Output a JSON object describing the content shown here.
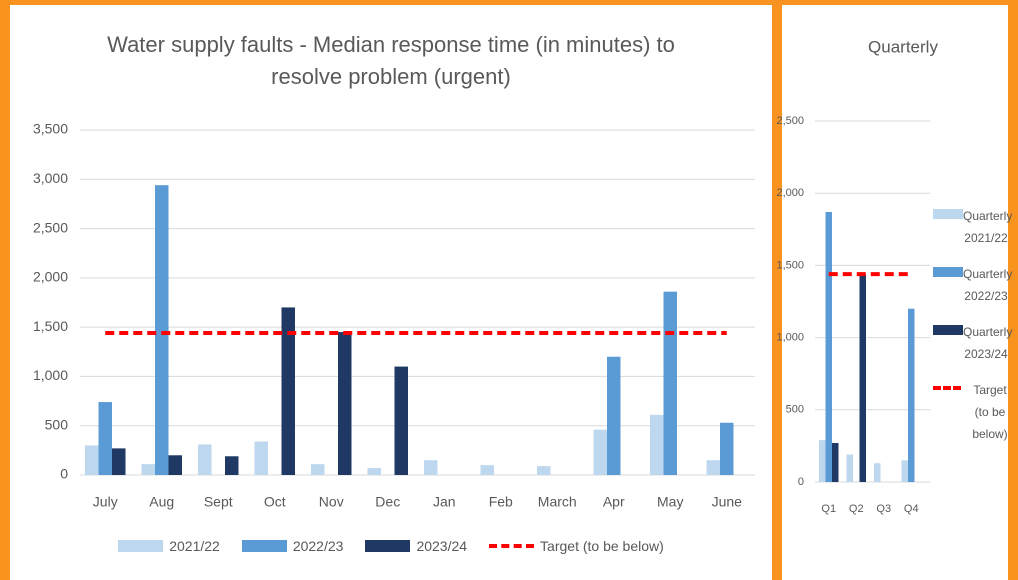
{
  "chart_data": [
    {
      "type": "bar",
      "title": [
        "Water supply faults - Median response time (in minutes) to",
        "resolve problem (urgent)"
      ],
      "categories": [
        "July",
        "Aug",
        "Sept",
        "Oct",
        "Nov",
        "Dec",
        "Jan",
        "Feb",
        "March",
        "Apr",
        "May",
        "June"
      ],
      "series": [
        {
          "name": "2021/22",
          "color": "#bdd7ee",
          "values": [
            300,
            110,
            310,
            340,
            110,
            70,
            150,
            100,
            90,
            460,
            610,
            150
          ]
        },
        {
          "name": "2022/23",
          "color": "#5b9bd5",
          "values": [
            740,
            2940,
            null,
            null,
            null,
            null,
            null,
            null,
            null,
            1200,
            1860,
            530
          ]
        },
        {
          "name": "2023/24",
          "color": "#203864",
          "values": [
            270,
            200,
            190,
            1700,
            1450,
            1100,
            null,
            null,
            null,
            null,
            null,
            null
          ]
        },
        {
          "name": "Target (to be below)",
          "color": "#ff0000",
          "type": "line",
          "dash": true,
          "values": [
            1440,
            1440,
            1440,
            1440,
            1440,
            1440,
            1440,
            1440,
            1440,
            1440,
            1440,
            1440
          ]
        }
      ],
      "ylim": [
        0,
        3500
      ],
      "yticks": [
        0,
        500,
        {
          "value": 1000,
          "label": "1,000"
        },
        {
          "value": 1500,
          "label": "1,500"
        },
        {
          "value": 2000,
          "label": "2,000"
        },
        {
          "value": 2500,
          "label": "2,500"
        },
        {
          "value": 3000,
          "label": "3,000"
        },
        {
          "value": 3500,
          "label": "3,500"
        }
      ],
      "grid": true,
      "legend": "bottom"
    },
    {
      "type": "bar",
      "title": [
        "Quarterly"
      ],
      "categories": [
        "Q1",
        "Q2",
        "Q3",
        "Q4"
      ],
      "series": [
        {
          "name": "Quarterly 2021/22",
          "color": "#bdd7ee",
          "values": [
            290,
            190,
            130,
            150
          ]
        },
        {
          "name": "Quarterly 2022/23",
          "color": "#5b9bd5",
          "values": [
            1870,
            null,
            null,
            1200
          ]
        },
        {
          "name": "Quarterly 2023/24",
          "color": "#203864",
          "values": [
            270,
            1440,
            null,
            null
          ]
        },
        {
          "name": "Target (to be below)",
          "color": "#ff0000",
          "type": "line",
          "dash": true,
          "values": [
            1440,
            1440,
            1440,
            1440
          ]
        }
      ],
      "ylim": [
        0,
        2500
      ],
      "yticks": [
        0,
        500,
        {
          "value": 1000,
          "label": "1,000"
        },
        {
          "value": 1500,
          "label": "1,500"
        },
        {
          "value": 2000,
          "label": "2,000"
        },
        {
          "value": 2500,
          "label": "2,500"
        }
      ],
      "grid": true,
      "legend": "right"
    }
  ]
}
